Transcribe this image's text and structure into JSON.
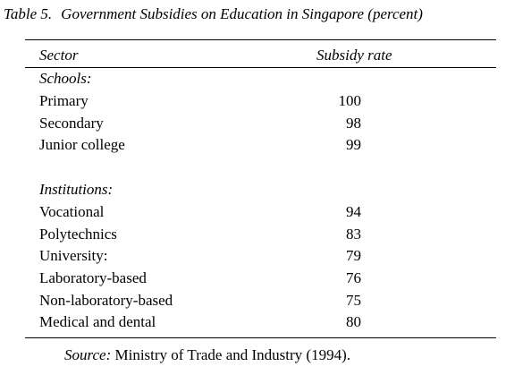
{
  "table": {
    "number": "Table 5.",
    "title": "Government Subsidies on Education in Singapore (percent)",
    "headers": {
      "sector": "Sector",
      "rate": "Subsidy rate"
    },
    "groups": [
      {
        "label": "Schools:",
        "rows": [
          {
            "sector": "Primary",
            "rate": "100"
          },
          {
            "sector": "Secondary",
            "rate": "98"
          },
          {
            "sector": "Junior college",
            "rate": "99"
          }
        ]
      },
      {
        "label": "Institutions:",
        "rows": [
          {
            "sector": "Vocational",
            "rate": "94"
          },
          {
            "sector": "Polytechnics",
            "rate": "83"
          },
          {
            "sector": "University:",
            "rate": "79"
          },
          {
            "sector": "Laboratory-based",
            "rate": "76"
          },
          {
            "sector": "Non-laboratory-based",
            "rate": "75"
          },
          {
            "sector": "Medical and dental",
            "rate": "80"
          }
        ]
      }
    ]
  },
  "source": {
    "label": "Source:",
    "text": "Ministry of Trade and Industry (1994)."
  }
}
